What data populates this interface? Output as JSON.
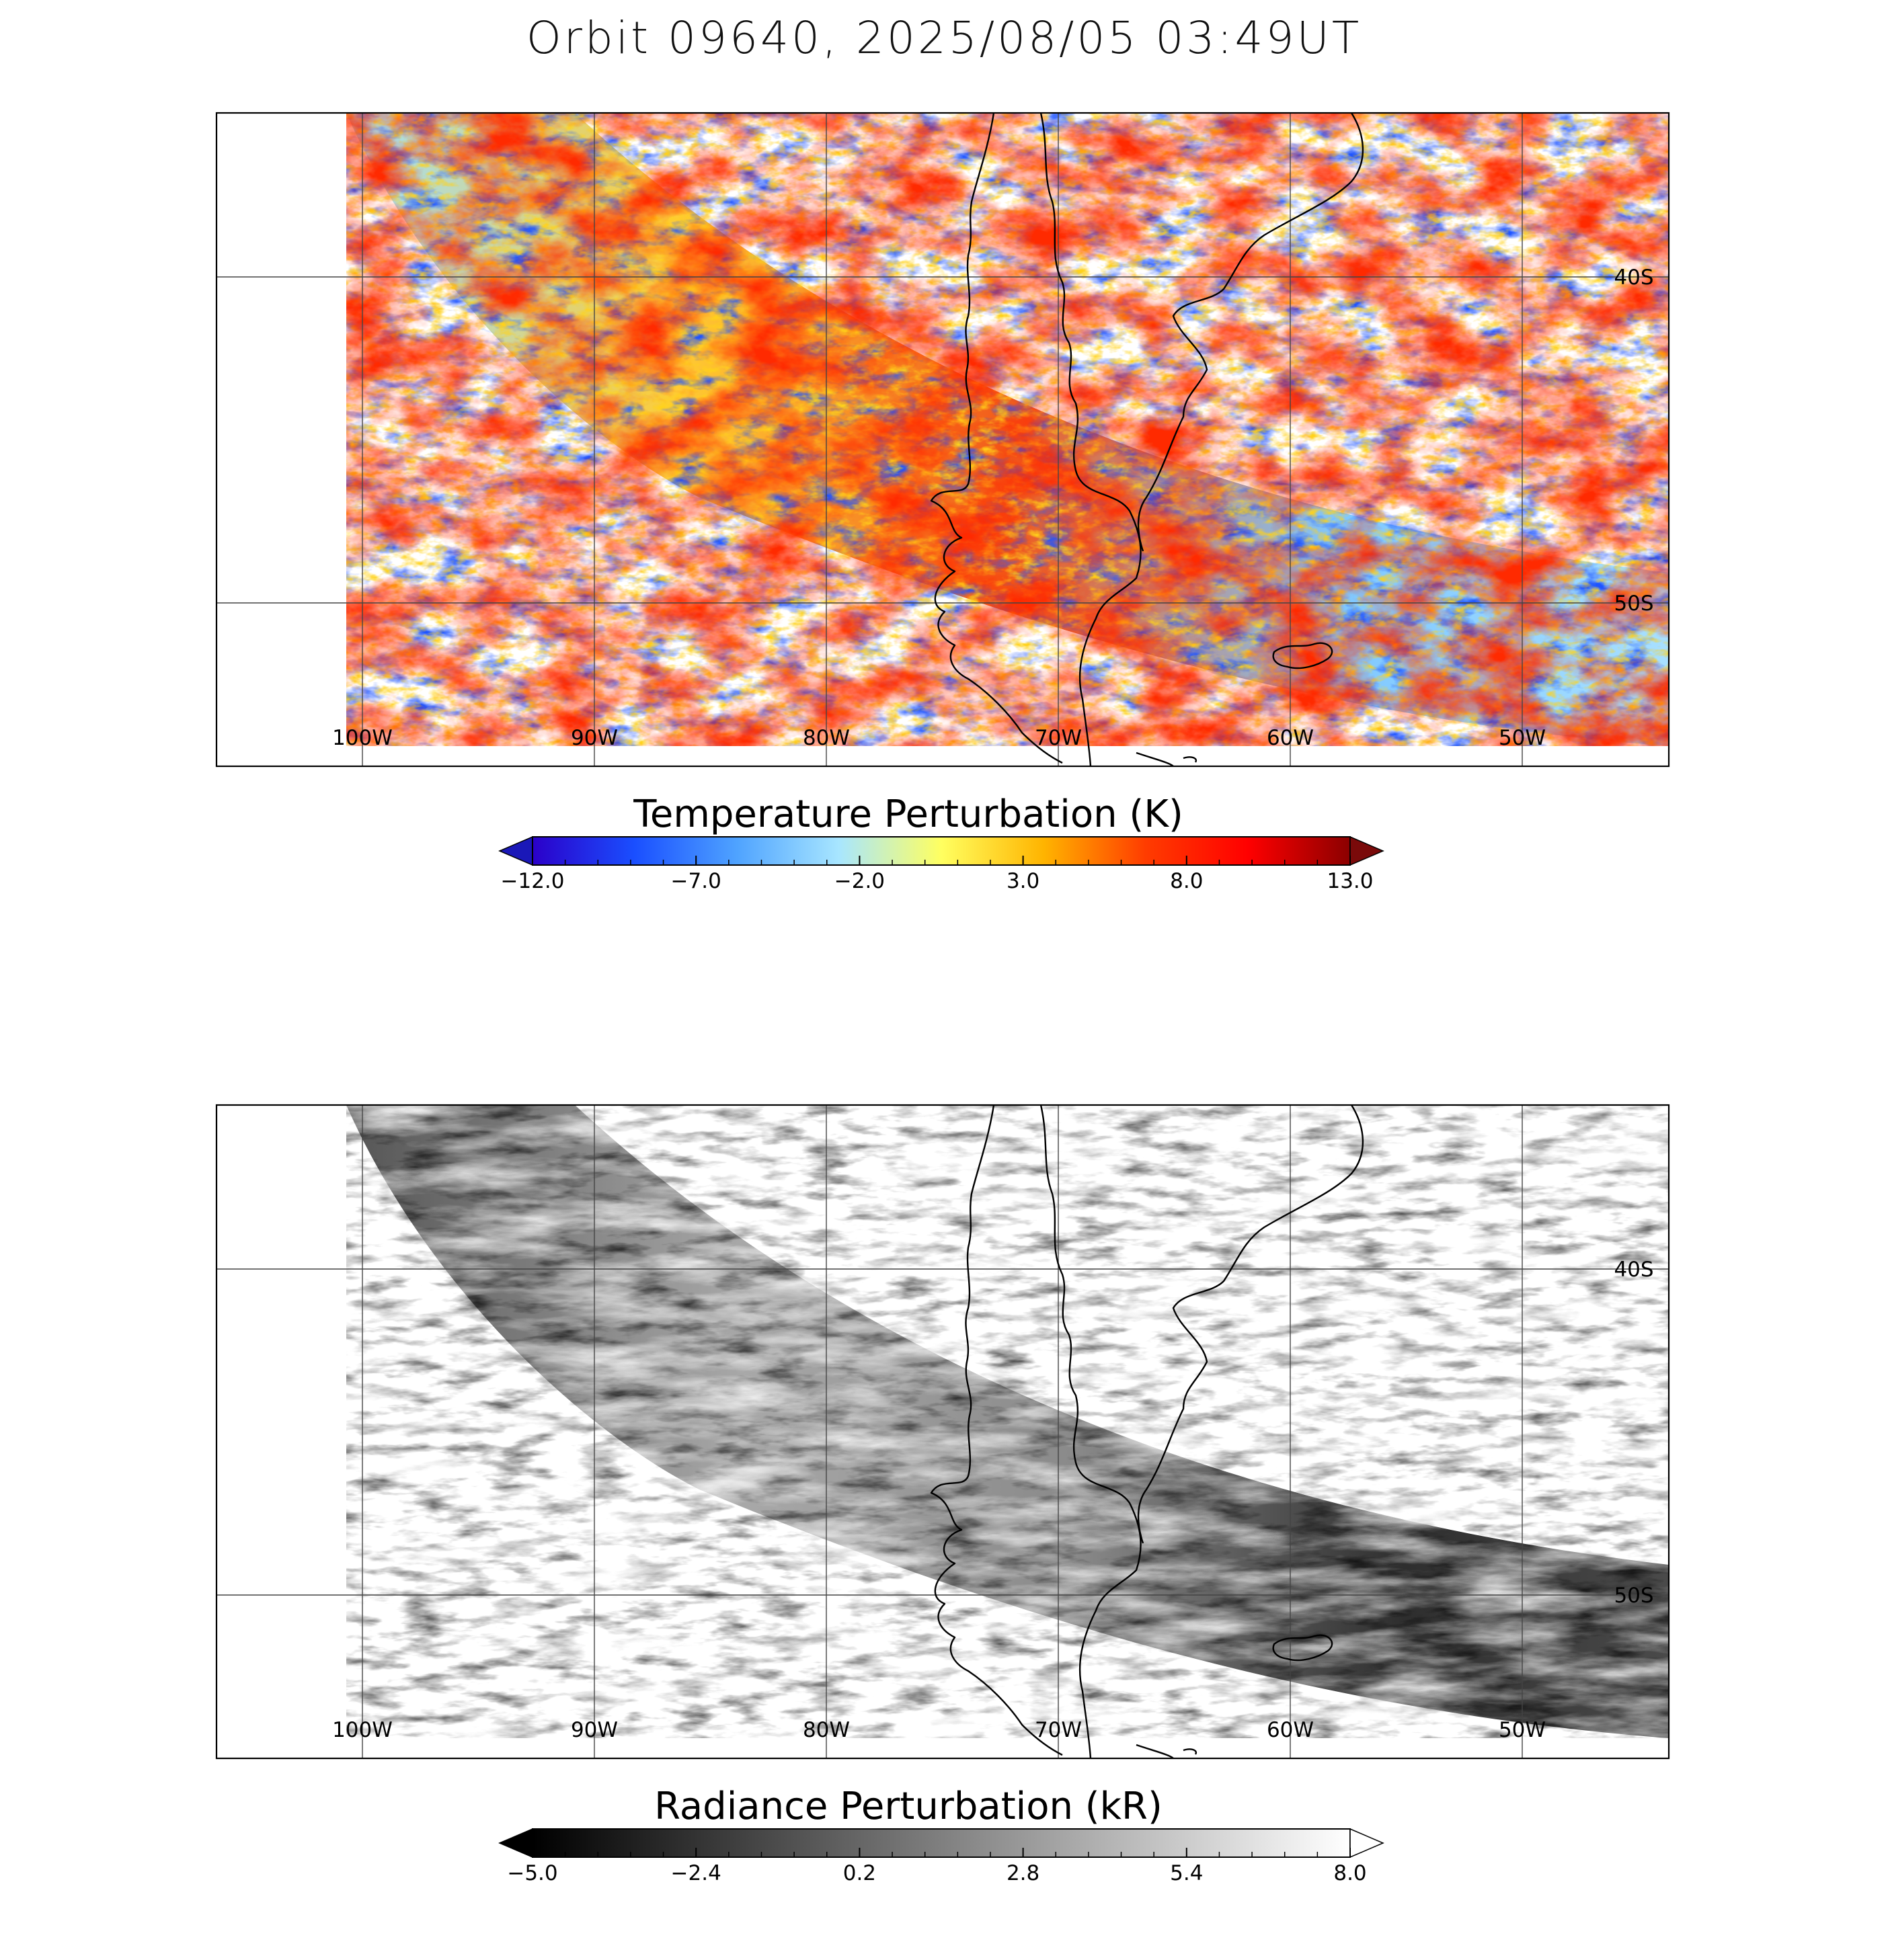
{
  "title": "Orbit 09640, 2025/08/05 03:49UT",
  "longitude_labels": [
    "100W",
    "90W",
    "80W",
    "70W",
    "60W",
    "50W"
  ],
  "latitude_labels": [
    "40S",
    "50S"
  ],
  "panels": [
    {
      "id": "temperature",
      "colorbar_title": "Temperature Perturbation (K)",
      "colorbar_ticks": [
        "−12.0",
        "−7.0",
        "−2.0",
        "3.0",
        "8.0",
        "13.0"
      ],
      "colorbar_range": [
        -12.0,
        13.0
      ],
      "colormap_stops": [
        "#2b00c9",
        "#1a4fff",
        "#4fa3ff",
        "#a8e6ff",
        "#ffff60",
        "#ffb400",
        "#ff3c00",
        "#ff0000",
        "#8b0000"
      ],
      "under_color": "#1a18b8",
      "over_color": "#7a0a0a"
    },
    {
      "id": "radiance",
      "colorbar_title": "Radiance Perturbation (kR)",
      "colorbar_ticks": [
        "−5.0",
        "−2.4",
        "0.2",
        "2.8",
        "5.4",
        "8.0"
      ],
      "colorbar_range": [
        -5.0,
        8.0
      ],
      "colormap_stops": [
        "#000000",
        "#ffffff"
      ],
      "under_color": "#000000",
      "over_color": "#ffffff"
    }
  ]
}
